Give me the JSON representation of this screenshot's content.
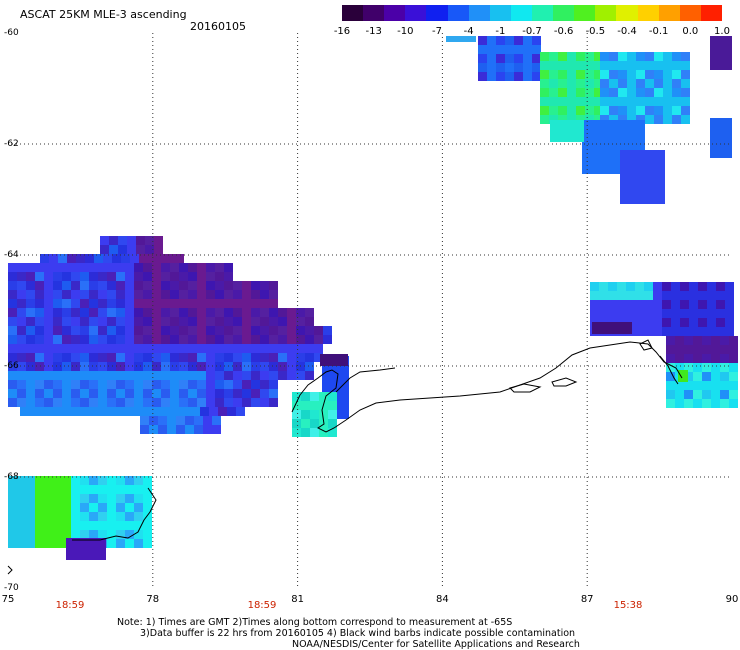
{
  "header": {
    "title": "ASCAT 25KM MLE-3 ascending",
    "date": "20160105"
  },
  "colorbar": {
    "labels": [
      "-16",
      "-13",
      "-10",
      "-7",
      "-4",
      "-1",
      "-0.7",
      "-0.6",
      "-0.5",
      "-0.4",
      "-0.1",
      "0.0",
      "1.0"
    ],
    "colors": [
      "#2a003a",
      "#40006a",
      "#4b00a8",
      "#3a10d8",
      "#1020f0",
      "#1858f8",
      "#2090f8",
      "#18c0f0",
      "#10e8f0",
      "#20f0b0",
      "#30f060",
      "#50f020",
      "#a0f000",
      "#e0f000",
      "#ffd000",
      "#ffa000",
      "#ff6000",
      "#ff2000"
    ]
  },
  "axes": {
    "lat_labels": [
      "-60",
      "-62",
      "-64",
      "-66",
      "-68",
      "-70"
    ],
    "lon_labels": [
      "75",
      "78",
      "81",
      "84",
      "87",
      "90"
    ]
  },
  "pass_times": [
    "18:59",
    "18:59",
    "15:38"
  ],
  "notes": {
    "line1": "Note: 1) Times are GMT 2)Times along bottom correspond to measurement at -65S",
    "line2": "3)Data buffer is 22 hrs from 20160105 4) Black wind barbs indicate possible contamination",
    "line3": "NOAA/NESDIS/Center for Satellite Applications and Research"
  }
}
